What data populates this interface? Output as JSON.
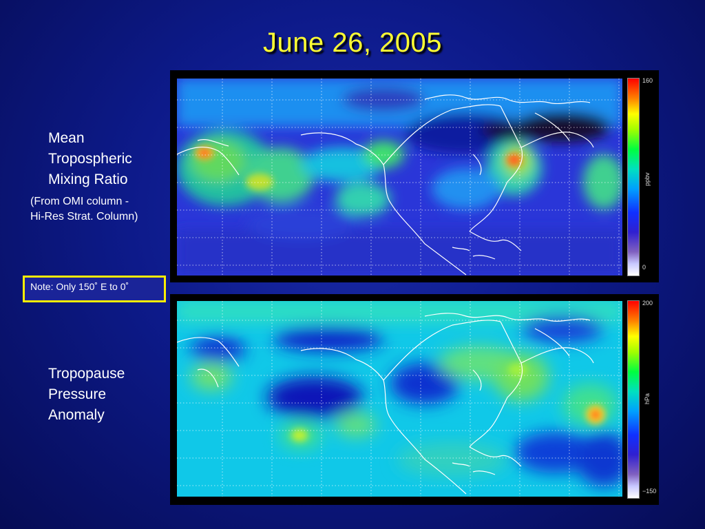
{
  "title": "June 26, 2005",
  "top_label": {
    "line1": "Mean",
    "line2": "Tropospheric",
    "line3": "Mixing Ratio",
    "sub1": "(From OMI column -",
    "sub2": "Hi-Res Strat. Column)"
  },
  "bottom_label": {
    "line1": "Tropopause",
    "line2": "Pressure",
    "line3": "Anomaly"
  },
  "note": "Note: Only 150˚ E to 0˚",
  "top_map": {
    "colorbar_max": "160",
    "colorbar_min": "0",
    "colorbar_unit": "ppbv"
  },
  "bottom_map": {
    "colorbar_max": "200",
    "colorbar_min": "−150",
    "colorbar_unit": "hPa"
  },
  "colors": {
    "title": "#ffff33",
    "note_border": "#ffee00",
    "coastline": "#ffffff"
  }
}
